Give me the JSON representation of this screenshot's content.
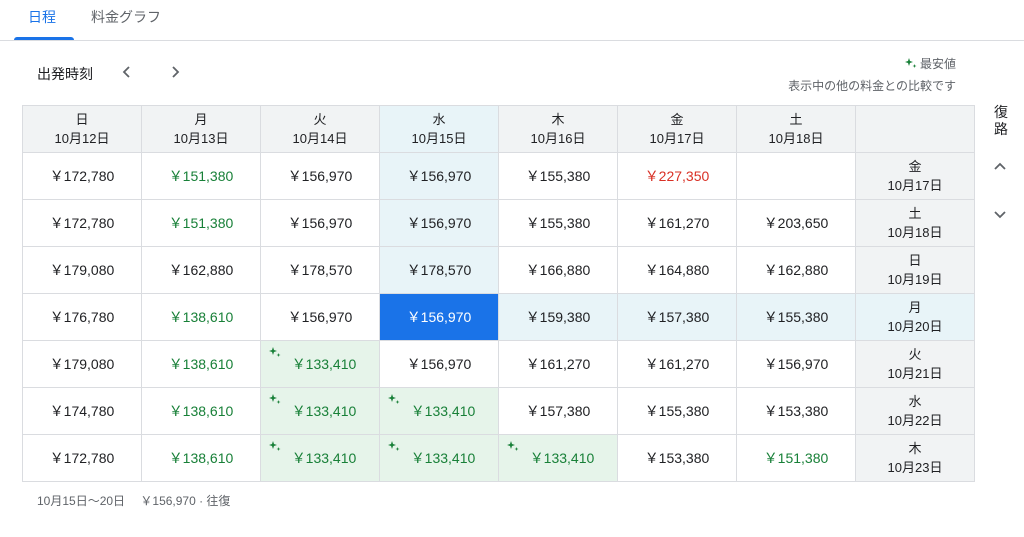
{
  "tabs": [
    {
      "label": "日程",
      "active": true
    },
    {
      "label": "料金グラフ",
      "active": false
    }
  ],
  "departure_label": "出発時刻",
  "legend": {
    "cheapest_label": "最安値",
    "note": "表示中の他の料金との比較です"
  },
  "return_label": "復路",
  "columns": [
    {
      "weekday": "日",
      "date": "10月12日"
    },
    {
      "weekday": "月",
      "date": "10月13日"
    },
    {
      "weekday": "火",
      "date": "10月14日"
    },
    {
      "weekday": "水",
      "date": "10月15日"
    },
    {
      "weekday": "木",
      "date": "10月16日"
    },
    {
      "weekday": "金",
      "date": "10月17日"
    },
    {
      "weekday": "土",
      "date": "10月18日"
    }
  ],
  "rows": [
    {
      "weekday": "金",
      "date": "10月17日",
      "cells": [
        {
          "price": "￥172,780",
          "tone": "normal"
        },
        {
          "price": "￥151,380",
          "tone": "green"
        },
        {
          "price": "￥156,970",
          "tone": "normal"
        },
        {
          "price": "￥156,970",
          "tone": "normal"
        },
        {
          "price": "￥155,380",
          "tone": "normal"
        },
        {
          "price": "￥227,350",
          "tone": "red"
        },
        {
          "price": "",
          "tone": "empty"
        }
      ]
    },
    {
      "weekday": "土",
      "date": "10月18日",
      "cells": [
        {
          "price": "￥172,780",
          "tone": "normal"
        },
        {
          "price": "￥151,380",
          "tone": "green"
        },
        {
          "price": "￥156,970",
          "tone": "normal"
        },
        {
          "price": "￥156,970",
          "tone": "normal"
        },
        {
          "price": "￥155,380",
          "tone": "normal"
        },
        {
          "price": "￥161,270",
          "tone": "normal"
        },
        {
          "price": "￥203,650",
          "tone": "normal"
        }
      ]
    },
    {
      "weekday": "日",
      "date": "10月19日",
      "cells": [
        {
          "price": "￥179,080",
          "tone": "normal"
        },
        {
          "price": "￥162,880",
          "tone": "normal"
        },
        {
          "price": "￥178,570",
          "tone": "normal"
        },
        {
          "price": "￥178,570",
          "tone": "normal"
        },
        {
          "price": "￥166,880",
          "tone": "normal"
        },
        {
          "price": "￥164,880",
          "tone": "normal"
        },
        {
          "price": "￥162,880",
          "tone": "normal"
        }
      ]
    },
    {
      "weekday": "月",
      "date": "10月20日",
      "cells": [
        {
          "price": "￥176,780",
          "tone": "normal"
        },
        {
          "price": "￥138,610",
          "tone": "green"
        },
        {
          "price": "￥156,970",
          "tone": "normal"
        },
        {
          "price": "￥156,970",
          "tone": "selected"
        },
        {
          "price": "￥159,380",
          "tone": "normal"
        },
        {
          "price": "￥157,380",
          "tone": "normal"
        },
        {
          "price": "￥155,380",
          "tone": "normal"
        }
      ]
    },
    {
      "weekday": "火",
      "date": "10月21日",
      "cells": [
        {
          "price": "￥179,080",
          "tone": "normal"
        },
        {
          "price": "￥138,610",
          "tone": "green"
        },
        {
          "price": "￥133,410",
          "tone": "lowest"
        },
        {
          "price": "￥156,970",
          "tone": "normal"
        },
        {
          "price": "￥161,270",
          "tone": "normal"
        },
        {
          "price": "￥161,270",
          "tone": "normal"
        },
        {
          "price": "￥156,970",
          "tone": "normal"
        }
      ]
    },
    {
      "weekday": "水",
      "date": "10月22日",
      "cells": [
        {
          "price": "￥174,780",
          "tone": "normal"
        },
        {
          "price": "￥138,610",
          "tone": "green"
        },
        {
          "price": "￥133,410",
          "tone": "lowest"
        },
        {
          "price": "￥133,410",
          "tone": "lowest"
        },
        {
          "price": "￥157,380",
          "tone": "normal"
        },
        {
          "price": "￥155,380",
          "tone": "normal"
        },
        {
          "price": "￥153,380",
          "tone": "normal"
        }
      ]
    },
    {
      "weekday": "木",
      "date": "10月23日",
      "cells": [
        {
          "price": "￥172,780",
          "tone": "normal"
        },
        {
          "price": "￥138,610",
          "tone": "green"
        },
        {
          "price": "￥133,410",
          "tone": "lowest"
        },
        {
          "price": "￥133,410",
          "tone": "lowest"
        },
        {
          "price": "￥133,410",
          "tone": "lowest"
        },
        {
          "price": "￥153,380",
          "tone": "normal"
        },
        {
          "price": "￥151,380",
          "tone": "green"
        }
      ]
    }
  ],
  "selection": {
    "column_index": 3,
    "row_index": 3
  },
  "summary": {
    "dates": "10月15日〜20日",
    "price": "￥156,970 · 往復"
  },
  "colors": {
    "accent": "#1a73e8",
    "green": "#188038",
    "red": "#d93025",
    "lowest_bg": "#e6f4ea",
    "highlight_bg": "#e8f4f8",
    "header_bg": "#f1f3f4"
  },
  "icons": {
    "prev": "chevron-left-icon",
    "next": "chevron-right-icon",
    "up": "chevron-up-icon",
    "down": "chevron-down-icon",
    "cheapest": "sparkle-icon"
  }
}
